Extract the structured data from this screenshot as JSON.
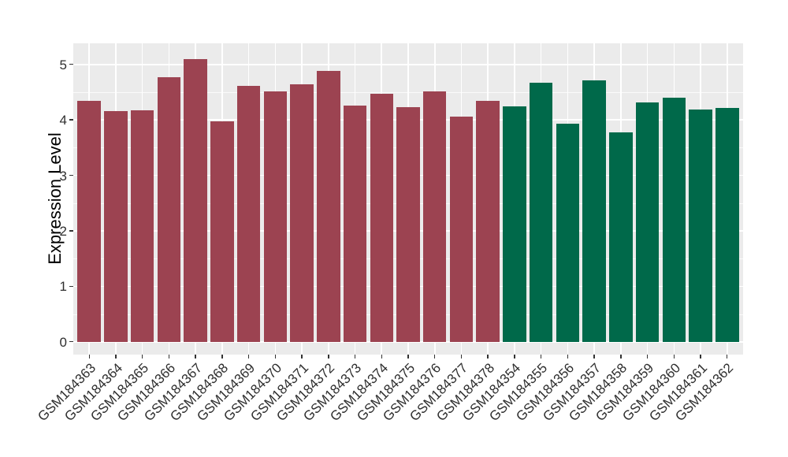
{
  "chart_data": {
    "type": "bar",
    "title": "",
    "xlabel": "",
    "ylabel": "Expression Level",
    "ylim": [
      -0.23,
      5.38
    ],
    "yticks": [
      0,
      1,
      2,
      3,
      4,
      5
    ],
    "minor_gridlines": [
      0.5,
      1.5,
      2.5,
      3.5,
      4.5
    ],
    "grid": "major+minor white on gray panel",
    "legend_position": "none",
    "panel_bg": "#EBEBEB",
    "grid_color": "#FFFFFF",
    "axis_text_color": "#2E2E2E",
    "tick_mark_color": "#333333",
    "series": [
      {
        "name": "group-1-red",
        "color": "#9C4351",
        "categories": [
          "GSM184363",
          "GSM184364",
          "GSM184365",
          "GSM184366",
          "GSM184367",
          "GSM184368",
          "GSM184369",
          "GSM184370",
          "GSM184371",
          "GSM184372",
          "GSM184373",
          "GSM184374",
          "GSM184375",
          "GSM184376",
          "GSM184377",
          "GSM184378"
        ],
        "values": [
          4.34,
          4.16,
          4.17,
          4.77,
          5.1,
          3.98,
          4.62,
          4.51,
          4.64,
          4.88,
          4.26,
          4.47,
          4.23,
          4.51,
          4.06,
          4.35
        ]
      },
      {
        "name": "group-2-green",
        "color": "#00694A",
        "categories": [
          "GSM184354",
          "GSM184355",
          "GSM184356",
          "GSM184357",
          "GSM184358",
          "GSM184359",
          "GSM184360",
          "GSM184361",
          "GSM184362"
        ],
        "values": [
          4.24,
          4.67,
          3.93,
          4.71,
          3.77,
          4.31,
          4.4,
          4.18,
          4.22
        ]
      }
    ]
  }
}
